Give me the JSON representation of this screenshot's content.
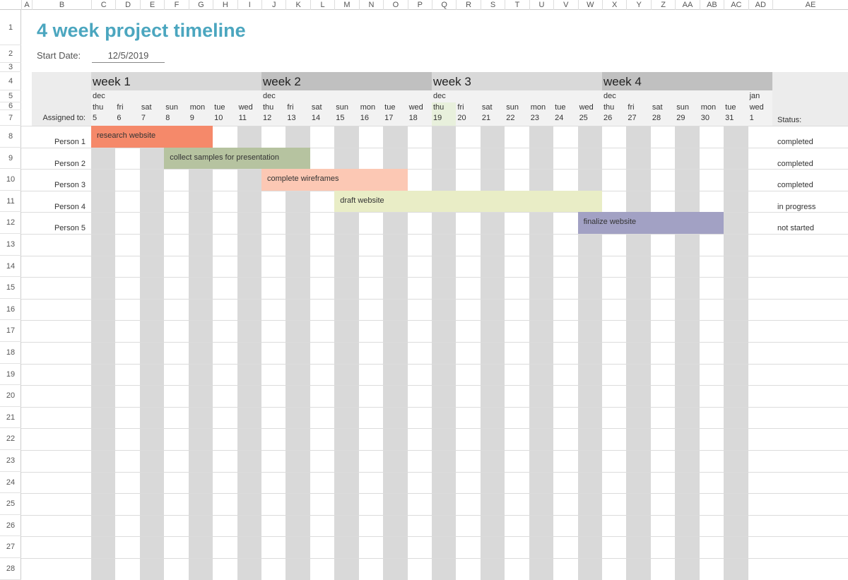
{
  "columns": [
    "A",
    "B",
    "C",
    "D",
    "E",
    "F",
    "G",
    "H",
    "I",
    "J",
    "K",
    "L",
    "M",
    "N",
    "O",
    "P",
    "Q",
    "R",
    "S",
    "T",
    "U",
    "V",
    "W",
    "X",
    "Y",
    "Z",
    "AA",
    "AB",
    "AC",
    "AD",
    "AE"
  ],
  "rows": [
    1,
    2,
    3,
    4,
    5,
    6,
    7,
    8,
    9,
    10,
    11,
    12,
    13,
    14,
    15,
    16,
    17,
    18,
    19,
    20,
    21,
    22,
    23,
    24,
    25,
    26,
    27,
    28
  ],
  "title": "4 week project timeline",
  "start_date_label": "Start Date:",
  "start_date": "12/5/2019",
  "assigned_to_label": "Assigned to:",
  "status_label": "Status:",
  "weeks": [
    "week 1",
    "week 2",
    "week 3",
    "week 4"
  ],
  "days": [
    {
      "month": "dec",
      "weekday": "thu",
      "day": 5
    },
    {
      "weekday": "fri",
      "day": 6
    },
    {
      "weekday": "sat",
      "day": 7
    },
    {
      "weekday": "sun",
      "day": 8
    },
    {
      "weekday": "mon",
      "day": 9
    },
    {
      "weekday": "tue",
      "day": 10
    },
    {
      "weekday": "wed",
      "day": 11
    },
    {
      "month": "dec",
      "weekday": "thu",
      "day": 12
    },
    {
      "weekday": "fri",
      "day": 13
    },
    {
      "weekday": "sat",
      "day": 14
    },
    {
      "weekday": "sun",
      "day": 15
    },
    {
      "weekday": "mon",
      "day": 16
    },
    {
      "weekday": "tue",
      "day": 17
    },
    {
      "weekday": "wed",
      "day": 18
    },
    {
      "month": "dec",
      "weekday": "thu",
      "day": 19
    },
    {
      "weekday": "fri",
      "day": 20
    },
    {
      "weekday": "sat",
      "day": 21
    },
    {
      "weekday": "sun",
      "day": 22
    },
    {
      "weekday": "mon",
      "day": 23
    },
    {
      "weekday": "tue",
      "day": 24
    },
    {
      "weekday": "wed",
      "day": 25
    },
    {
      "month": "dec",
      "weekday": "thu",
      "day": 26
    },
    {
      "weekday": "fri",
      "day": 27
    },
    {
      "weekday": "sat",
      "day": 28
    },
    {
      "weekday": "sun",
      "day": 29
    },
    {
      "weekday": "mon",
      "day": 30
    },
    {
      "weekday": "tue",
      "day": 31
    },
    {
      "month": "jan",
      "weekday": "wed",
      "day": 1
    }
  ],
  "tasks": [
    {
      "person": "Person 1",
      "task": "research website",
      "status": "completed",
      "color": "#f5896a"
    },
    {
      "person": "Person 2",
      "task": "collect samples for presentation",
      "status": "completed",
      "color": "#b6c3a0"
    },
    {
      "person": "Person 3",
      "task": "complete wireframes",
      "status": "completed",
      "color": "#fcc8b4"
    },
    {
      "person": "Person 4",
      "task": "draft website",
      "status": "in progress",
      "color": "#e9edc6"
    },
    {
      "person": "Person 5",
      "task": "finalize website",
      "status": "not started",
      "color": "#a2a1c4"
    }
  ]
}
